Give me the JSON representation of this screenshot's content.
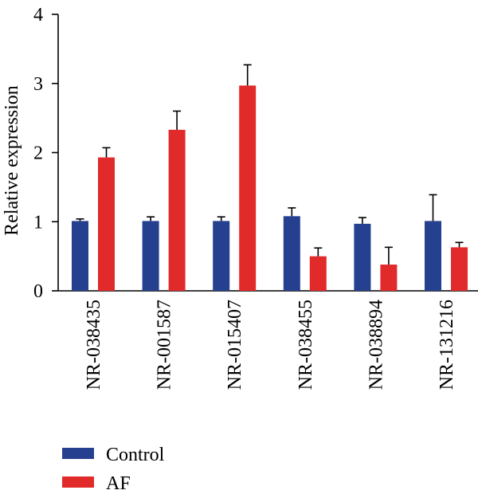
{
  "chart_data": {
    "type": "bar",
    "ylabel": "Relative expression",
    "xlabel": "",
    "ylim": [
      0,
      4
    ],
    "yticks": [
      0,
      1,
      2,
      3,
      4
    ],
    "categories": [
      "NR-038435",
      "NR-001587",
      "NR-015407",
      "NR-038455",
      "NR-038894",
      "NR-131216"
    ],
    "series": [
      {
        "name": "Control",
        "color": "#25408f",
        "values": [
          1.01,
          1.01,
          1.01,
          1.08,
          0.97,
          1.01
        ],
        "errors": [
          0.03,
          0.06,
          0.06,
          0.12,
          0.09,
          0.38
        ]
      },
      {
        "name": "AF",
        "color": "#e12b2b",
        "values": [
          1.93,
          2.33,
          2.97,
          0.5,
          0.38,
          0.63
        ],
        "errors": [
          0.14,
          0.27,
          0.3,
          0.12,
          0.25,
          0.07
        ]
      }
    ],
    "legend_position": "bottom-left",
    "grid": false
  }
}
